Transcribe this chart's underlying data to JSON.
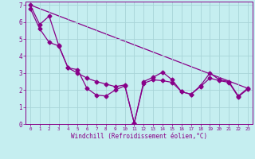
{
  "xlabel": "Windchill (Refroidissement éolien,°C)",
  "background_color": "#c5eef0",
  "grid_color": "#a8d4d8",
  "line_color": "#880088",
  "markersize": 2.5,
  "linewidth": 0.9,
  "xlim": [
    -0.5,
    23.5
  ],
  "ylim": [
    0,
    7.2
  ],
  "xticks": [
    0,
    1,
    2,
    3,
    4,
    5,
    6,
    7,
    8,
    9,
    10,
    11,
    12,
    13,
    14,
    15,
    16,
    17,
    18,
    19,
    20,
    21,
    22,
    23
  ],
  "yticks": [
    0,
    1,
    2,
    3,
    4,
    5,
    6,
    7
  ],
  "line1_x": [
    0,
    1,
    2,
    3,
    4,
    5,
    6,
    7,
    8,
    9,
    10,
    11,
    12,
    13,
    14,
    15,
    16,
    17,
    18,
    19,
    20,
    21,
    22,
    23
  ],
  "line1_y": [
    7.0,
    5.85,
    6.35,
    4.65,
    3.3,
    3.2,
    2.1,
    1.7,
    1.65,
    2.0,
    2.25,
    0.05,
    2.5,
    2.75,
    3.05,
    2.6,
    1.9,
    1.75,
    2.25,
    3.0,
    2.6,
    2.5,
    1.65,
    2.1
  ],
  "line2_x": [
    0,
    1,
    2,
    3,
    4,
    5,
    6,
    7,
    8,
    9,
    10,
    11,
    12,
    13,
    14,
    15,
    16,
    17,
    18,
    19,
    20,
    21,
    22,
    23
  ],
  "line2_y": [
    6.8,
    5.6,
    4.8,
    4.6,
    3.3,
    3.0,
    2.7,
    2.5,
    2.35,
    2.2,
    2.3,
    0.05,
    2.4,
    2.6,
    2.55,
    2.45,
    1.9,
    1.75,
    2.2,
    2.7,
    2.55,
    2.45,
    1.6,
    2.05
  ],
  "line3_x": [
    0,
    23
  ],
  "line3_y": [
    7.0,
    2.1
  ]
}
